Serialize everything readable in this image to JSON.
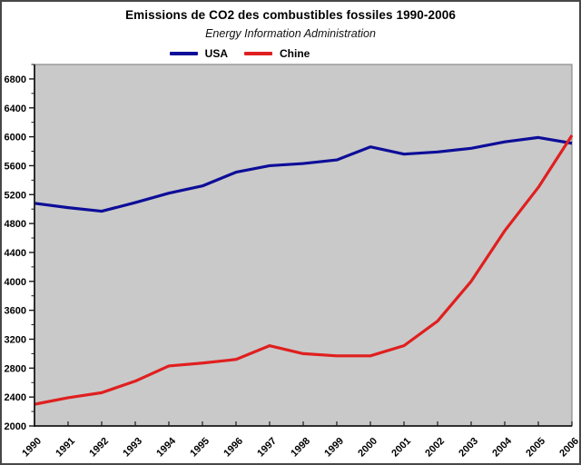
{
  "header": {
    "title": "Emissions de CO2 des combustibles fossiles 1990-2006",
    "subtitle": "Energy Information Administration"
  },
  "legend": {
    "items": [
      {
        "label": "USA",
        "color": "#0d0d99"
      },
      {
        "label": "Chine",
        "color": "#e01f1f"
      }
    ]
  },
  "chart_data": {
    "type": "line",
    "title": "Emissions de CO2 des combustibles fossiles 1990-2006",
    "subtitle": "Energy Information Administration",
    "x_categories": [
      "1990",
      "1991",
      "1992",
      "1993",
      "1994",
      "1995",
      "1996",
      "1997",
      "1998",
      "1999",
      "2000",
      "2001",
      "2002",
      "2003",
      "2004",
      "2005",
      "2006"
    ],
    "series": [
      {
        "name": "USA",
        "color": "#0d0d99",
        "values": [
          5080,
          5020,
          4970,
          5090,
          5220,
          5320,
          5510,
          5600,
          5630,
          5680,
          5860,
          5760,
          5790,
          5840,
          5930,
          5990,
          5910
        ]
      },
      {
        "name": "Chine",
        "color": "#e01f1f",
        "values": [
          2300,
          2390,
          2460,
          2620,
          2830,
          2870,
          2920,
          3110,
          3000,
          2970,
          2970,
          3110,
          3450,
          4000,
          4700,
          5300,
          6020
        ]
      }
    ],
    "ylim": [
      2000,
      7000
    ],
    "yticks_major": [
      2000,
      2400,
      2800,
      3200,
      3600,
      4000,
      4400,
      4800,
      5200,
      5600,
      6000,
      6400,
      6800
    ],
    "ytick_minor_start": 2200,
    "ytick_step": 400,
    "grid": false,
    "legend_position": "top-center",
    "plot_bg": "#c9c9c9",
    "axis_color": "#1a1a1a",
    "frame_color": "#8a8a8a"
  }
}
